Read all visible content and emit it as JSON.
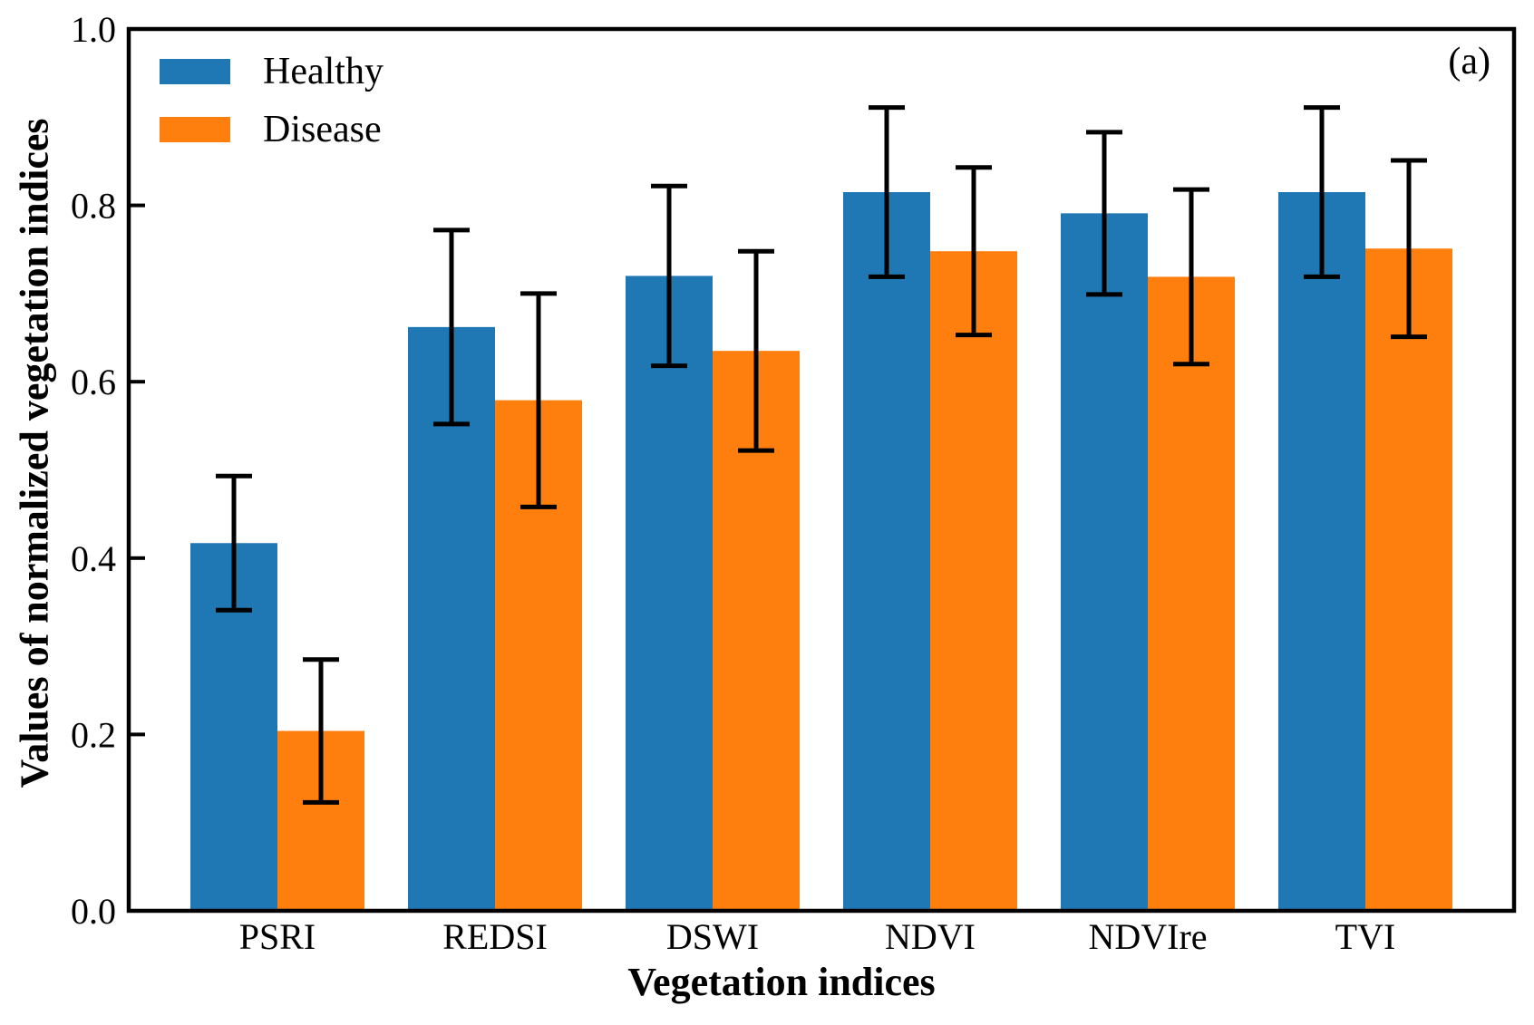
{
  "figure": {
    "panel_label": "(a)"
  },
  "chart_data": {
    "type": "bar",
    "title": "",
    "panel_label": "(a)",
    "xlabel": "Vegetation indices",
    "ylabel": "Values of normalized vegetation indices",
    "categories": [
      "PSRI",
      "REDSI",
      "DSWI",
      "NDVI",
      "NDVIre",
      "TVI"
    ],
    "series": [
      {
        "name": "Healthy",
        "color": "#1f77b4",
        "values": [
          0.417,
          0.662,
          0.72,
          0.815,
          0.791,
          0.815
        ],
        "errors": [
          0.076,
          0.11,
          0.102,
          0.096,
          0.092,
          0.096
        ]
      },
      {
        "name": "Disease",
        "color": "#ff7f0e",
        "values": [
          0.204,
          0.579,
          0.635,
          0.748,
          0.719,
          0.751
        ],
        "errors": [
          0.081,
          0.121,
          0.113,
          0.095,
          0.099,
          0.1
        ]
      }
    ],
    "ylim": [
      0.0,
      1.0
    ],
    "yticks": [
      0.0,
      0.2,
      0.4,
      0.6,
      0.8,
      1.0
    ],
    "error_bar_color": "#000000",
    "axis_color": "#000000",
    "grid": "off",
    "legend_position": "upper-left"
  }
}
